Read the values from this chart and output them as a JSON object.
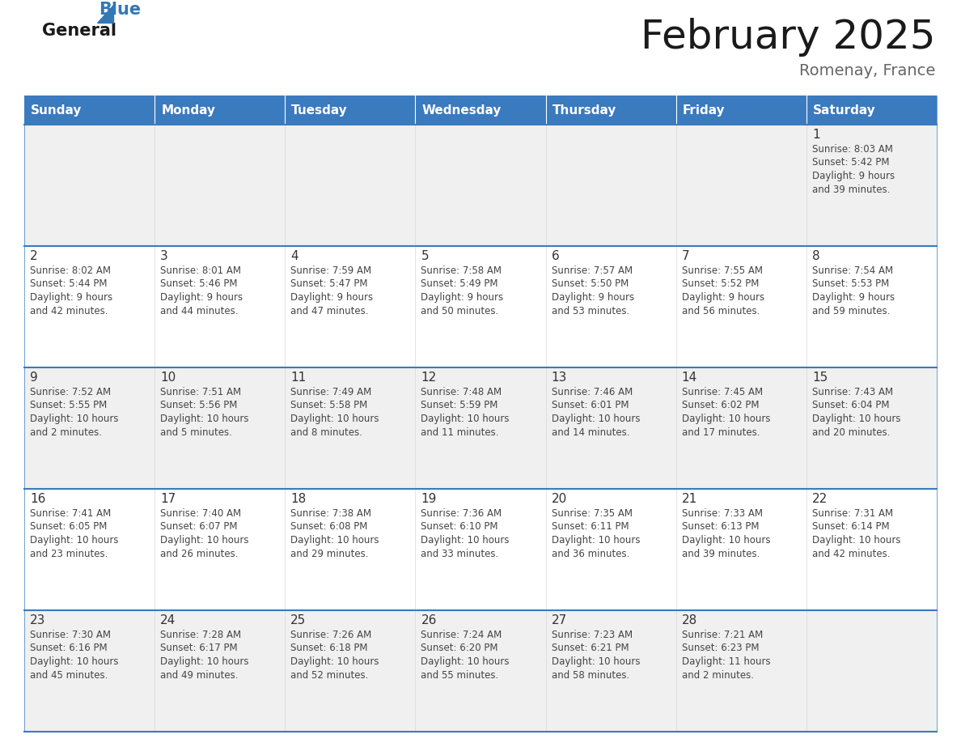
{
  "title": "February 2025",
  "subtitle": "Romenay, France",
  "header_bg": "#3a7abf",
  "header_text_color": "#ffffff",
  "cell_bg_odd": "#f0f0f0",
  "cell_bg_even": "#ffffff",
  "day_text_color": "#333333",
  "info_text_color": "#444444",
  "border_color": "#3a7abf",
  "days_of_week": [
    "Sunday",
    "Monday",
    "Tuesday",
    "Wednesday",
    "Thursday",
    "Friday",
    "Saturday"
  ],
  "calendar": [
    [
      null,
      null,
      null,
      null,
      null,
      null,
      {
        "day": "1",
        "sunrise": "8:03 AM",
        "sunset": "5:42 PM",
        "daylight_h": "9",
        "daylight_m": "39"
      }
    ],
    [
      {
        "day": "2",
        "sunrise": "8:02 AM",
        "sunset": "5:44 PM",
        "daylight_h": "9",
        "daylight_m": "42"
      },
      {
        "day": "3",
        "sunrise": "8:01 AM",
        "sunset": "5:46 PM",
        "daylight_h": "9",
        "daylight_m": "44"
      },
      {
        "day": "4",
        "sunrise": "7:59 AM",
        "sunset": "5:47 PM",
        "daylight_h": "9",
        "daylight_m": "47"
      },
      {
        "day": "5",
        "sunrise": "7:58 AM",
        "sunset": "5:49 PM",
        "daylight_h": "9",
        "daylight_m": "50"
      },
      {
        "day": "6",
        "sunrise": "7:57 AM",
        "sunset": "5:50 PM",
        "daylight_h": "9",
        "daylight_m": "53"
      },
      {
        "day": "7",
        "sunrise": "7:55 AM",
        "sunset": "5:52 PM",
        "daylight_h": "9",
        "daylight_m": "56"
      },
      {
        "day": "8",
        "sunrise": "7:54 AM",
        "sunset": "5:53 PM",
        "daylight_h": "9",
        "daylight_m": "59"
      }
    ],
    [
      {
        "day": "9",
        "sunrise": "7:52 AM",
        "sunset": "5:55 PM",
        "daylight_h": "10",
        "daylight_m": "2"
      },
      {
        "day": "10",
        "sunrise": "7:51 AM",
        "sunset": "5:56 PM",
        "daylight_h": "10",
        "daylight_m": "5"
      },
      {
        "day": "11",
        "sunrise": "7:49 AM",
        "sunset": "5:58 PM",
        "daylight_h": "10",
        "daylight_m": "8"
      },
      {
        "day": "12",
        "sunrise": "7:48 AM",
        "sunset": "5:59 PM",
        "daylight_h": "10",
        "daylight_m": "11"
      },
      {
        "day": "13",
        "sunrise": "7:46 AM",
        "sunset": "6:01 PM",
        "daylight_h": "10",
        "daylight_m": "14"
      },
      {
        "day": "14",
        "sunrise": "7:45 AM",
        "sunset": "6:02 PM",
        "daylight_h": "10",
        "daylight_m": "17"
      },
      {
        "day": "15",
        "sunrise": "7:43 AM",
        "sunset": "6:04 PM",
        "daylight_h": "10",
        "daylight_m": "20"
      }
    ],
    [
      {
        "day": "16",
        "sunrise": "7:41 AM",
        "sunset": "6:05 PM",
        "daylight_h": "10",
        "daylight_m": "23"
      },
      {
        "day": "17",
        "sunrise": "7:40 AM",
        "sunset": "6:07 PM",
        "daylight_h": "10",
        "daylight_m": "26"
      },
      {
        "day": "18",
        "sunrise": "7:38 AM",
        "sunset": "6:08 PM",
        "daylight_h": "10",
        "daylight_m": "29"
      },
      {
        "day": "19",
        "sunrise": "7:36 AM",
        "sunset": "6:10 PM",
        "daylight_h": "10",
        "daylight_m": "33"
      },
      {
        "day": "20",
        "sunrise": "7:35 AM",
        "sunset": "6:11 PM",
        "daylight_h": "10",
        "daylight_m": "36"
      },
      {
        "day": "21",
        "sunrise": "7:33 AM",
        "sunset": "6:13 PM",
        "daylight_h": "10",
        "daylight_m": "39"
      },
      {
        "day": "22",
        "sunrise": "7:31 AM",
        "sunset": "6:14 PM",
        "daylight_h": "10",
        "daylight_m": "42"
      }
    ],
    [
      {
        "day": "23",
        "sunrise": "7:30 AM",
        "sunset": "6:16 PM",
        "daylight_h": "10",
        "daylight_m": "45"
      },
      {
        "day": "24",
        "sunrise": "7:28 AM",
        "sunset": "6:17 PM",
        "daylight_h": "10",
        "daylight_m": "49"
      },
      {
        "day": "25",
        "sunrise": "7:26 AM",
        "sunset": "6:18 PM",
        "daylight_h": "10",
        "daylight_m": "52"
      },
      {
        "day": "26",
        "sunrise": "7:24 AM",
        "sunset": "6:20 PM",
        "daylight_h": "10",
        "daylight_m": "55"
      },
      {
        "day": "27",
        "sunrise": "7:23 AM",
        "sunset": "6:21 PM",
        "daylight_h": "10",
        "daylight_m": "58"
      },
      {
        "day": "28",
        "sunrise": "7:21 AM",
        "sunset": "6:23 PM",
        "daylight_h": "11",
        "daylight_m": "2"
      },
      null
    ]
  ],
  "logo_general_color": "#1a1a1a",
  "logo_blue_color": "#3278b5",
  "title_color": "#1a1a1a",
  "subtitle_color": "#666666",
  "fig_width": 11.88,
  "fig_height": 9.18,
  "dpi": 100
}
